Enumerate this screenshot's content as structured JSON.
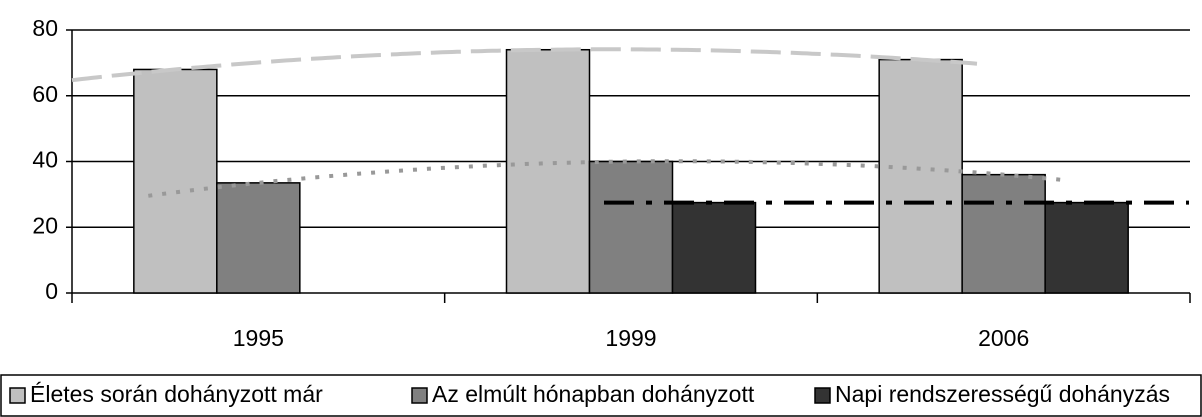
{
  "chart_data": {
    "type": "bar",
    "categories": [
      "1995",
      "1999",
      "2006"
    ],
    "series": [
      {
        "name": "Életes során dohányzott már",
        "color": "#c0c0c0",
        "values": [
          68,
          74,
          71
        ]
      },
      {
        "name": "Az elmúlt hónapban dohányzott",
        "color": "#808080",
        "values": [
          33.5,
          40,
          36
        ]
      },
      {
        "name": "Napi rendszerességű dohányzás",
        "color": "#333333",
        "values": [
          null,
          27.5,
          27.5
        ]
      }
    ],
    "ylim": [
      0,
      80
    ],
    "yticks": [
      0,
      20,
      40,
      60,
      80
    ],
    "grid": true,
    "legend": "bottom"
  }
}
